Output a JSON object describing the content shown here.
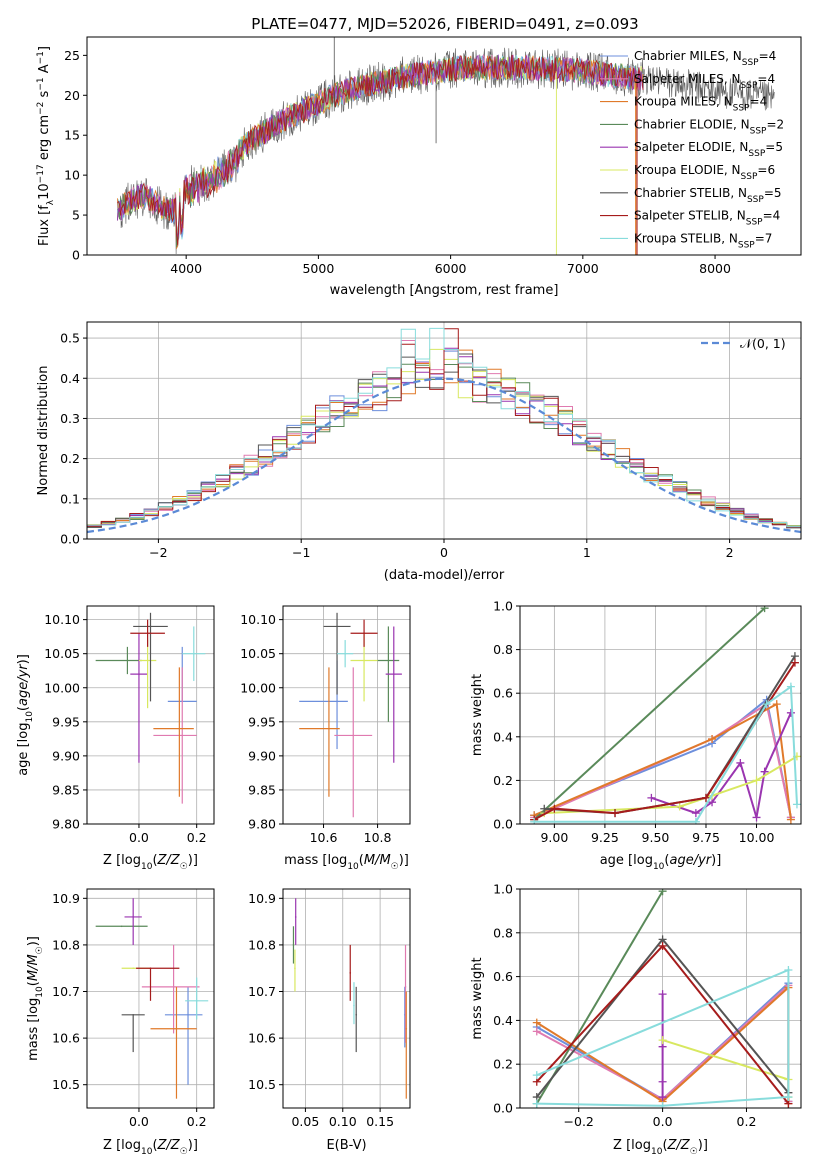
{
  "figure_title": "PLATE=0477, MJD=52026, FIBERID=0491, z=0.093",
  "colors": {
    "Chabrier MILES": "#6d8fdc",
    "Salpeter MILES": "#e07ab0",
    "Kroupa MILES": "#e07a2a",
    "Chabrier ELODIE": "#5a8a5a",
    "Salpeter ELODIE": "#9a35b0",
    "Kroupa ELODIE": "#d8e860",
    "Chabrier STELIB": "#555555",
    "Salpeter STELIB": "#a61c1c",
    "Kroupa STELIB": "#88dcdc",
    "normal": "#5b8ad6",
    "grid": "#b0b0b0"
  },
  "chart_data": [
    {
      "id": "spectrum",
      "type": "line",
      "title": "PLATE=0477, MJD=52026, FIBERID=0491, z=0.093",
      "xlabel": "wavelength [Angstrom, rest frame]",
      "ylabel": "Flux [f_λ10^-17 erg cm^-2 s^-1 A^-1]",
      "xlim": [
        3250,
        8650
      ],
      "ylim": [
        0,
        27.3
      ],
      "xticks": [
        4000,
        5000,
        6000,
        7000,
        8000
      ],
      "yticks": [
        0,
        5,
        10,
        15,
        20,
        25
      ],
      "grid": false,
      "legend_position": "top-right",
      "legend": [
        "Chabrier MILES, N_SSP=4",
        "Salpeter MILES, N_SSP=4",
        "Kroupa MILES, N_SSP=4",
        "Chabrier ELODIE, N_SSP=2",
        "Salpeter ELODIE, N_SSP=5",
        "Kroupa ELODIE, N_SSP=6",
        "Chabrier STELIB, N_SSP=5",
        "Salpeter STELIB, N_SSP=4",
        "Kroupa STELIB, N_SSP=7"
      ],
      "continuum": {
        "x": [
          3480,
          3600,
          3700,
          3800,
          3900,
          4000,
          4100,
          4200,
          4300,
          4400,
          4500,
          4600,
          4700,
          4800,
          4900,
          5000,
          5100,
          5200,
          5300,
          5400,
          5500,
          5600,
          5700,
          5800,
          5900,
          6000,
          6200,
          6400,
          6600,
          6800,
          7000,
          7200,
          7400,
          7600,
          7800,
          8000,
          8200,
          8450
        ],
        "y": [
          5.5,
          7.0,
          7.5,
          6.0,
          5.5,
          8.5,
          9.5,
          10.5,
          11.5,
          13.0,
          14.5,
          15.5,
          16.5,
          17.5,
          18.2,
          19.0,
          19.8,
          20.5,
          21.0,
          21.4,
          21.8,
          22.2,
          22.5,
          22.8,
          23.0,
          23.3,
          23.4,
          23.5,
          23.4,
          23.3,
          23.0,
          22.6,
          22.2,
          21.7,
          21.2,
          20.6,
          20.1,
          19.5
        ]
      }
    },
    {
      "id": "residuals",
      "type": "histogram",
      "xlabel": "(data-model)/error",
      "ylabel": "Normed distribution",
      "xlim": [
        -2.5,
        2.5
      ],
      "ylim": [
        0,
        0.54
      ],
      "xticks": [
        -2,
        -1,
        0,
        1,
        2
      ],
      "yticks": [
        0.0,
        0.1,
        0.2,
        0.3,
        0.4,
        0.5
      ],
      "grid": true,
      "legend_position": "top-right",
      "legend": [
        "N(0,1)"
      ],
      "bin_width": 0.1
    },
    {
      "id": "age_vs_Z",
      "type": "scatter",
      "xlabel": "Z [log10(Z/Z☉)]",
      "ylabel": "age [log10(age/yr)]",
      "xlim": [
        -0.18,
        0.26
      ],
      "ylim": [
        9.8,
        10.12
      ],
      "xticks": [
        0.0,
        0.2
      ],
      "yticks": [
        9.8,
        9.85,
        9.9,
        9.95,
        10.0,
        10.05,
        10.1
      ],
      "grid": true,
      "points": [
        {
          "model": "Chabrier MILES",
          "x": 0.15,
          "xerr": [
            0.05,
            0.05
          ],
          "y": 9.98,
          "yerr": [
            0.0,
            0.08
          ]
        },
        {
          "model": "Salpeter MILES",
          "x": 0.15,
          "xerr": [
            0.1,
            0.05
          ],
          "y": 9.93,
          "yerr": [
            0.1,
            0.1
          ]
        },
        {
          "model": "Kroupa MILES",
          "x": 0.14,
          "xerr": [
            0.09,
            0.05
          ],
          "y": 9.94,
          "yerr": [
            0.1,
            0.09
          ]
        },
        {
          "model": "Chabrier ELODIE",
          "x": -0.04,
          "xerr": [
            0.11,
            0.05
          ],
          "y": 10.04,
          "yerr": [
            0.02,
            0.02
          ]
        },
        {
          "model": "Salpeter ELODIE",
          "x": 0.0,
          "xerr": [
            0.03,
            0.03
          ],
          "y": 10.02,
          "yerr": [
            0.13,
            0.06
          ]
        },
        {
          "model": "Kroupa ELODIE",
          "x": 0.03,
          "xerr": [
            0.03,
            0.03
          ],
          "y": 10.04,
          "yerr": [
            0.07,
            0.03
          ]
        },
        {
          "model": "Chabrier STELIB",
          "x": 0.04,
          "xerr": [
            0.06,
            0.06
          ],
          "y": 10.09,
          "yerr": [
            0.11,
            0.02
          ]
        },
        {
          "model": "Salpeter STELIB",
          "x": 0.03,
          "xerr": [
            0.06,
            0.06
          ],
          "y": 10.08,
          "yerr": [
            0.02,
            0.02
          ]
        },
        {
          "model": "Kroupa STELIB",
          "x": 0.19,
          "xerr": [
            0.04,
            0.04
          ],
          "y": 10.05,
          "yerr": [
            0.04,
            0.04
          ]
        }
      ]
    },
    {
      "id": "age_vs_mass",
      "type": "scatter",
      "xlabel": "mass [log10(M/M☉)]",
      "ylabel": "",
      "xlim": [
        10.45,
        10.92
      ],
      "ylim": [
        9.8,
        10.12
      ],
      "xticks": [
        10.6,
        10.8
      ],
      "yticks": [
        9.8,
        9.85,
        9.9,
        9.95,
        10.0,
        10.05,
        10.1
      ],
      "grid": true,
      "points": [
        {
          "model": "Chabrier MILES",
          "x": 10.65,
          "xerr": [
            0.14,
            0.04
          ],
          "y": 9.98,
          "yerr": [
            0.07,
            0.06
          ]
        },
        {
          "model": "Salpeter MILES",
          "x": 10.71,
          "xerr": [
            0.07,
            0.07
          ],
          "y": 9.93,
          "yerr": [
            0.12,
            0.1
          ]
        },
        {
          "model": "Kroupa MILES",
          "x": 10.62,
          "xerr": [
            0.11,
            0.04
          ],
          "y": 9.94,
          "yerr": [
            0.1,
            0.09
          ]
        },
        {
          "model": "Chabrier ELODIE",
          "x": 10.84,
          "xerr": [
            0.04,
            0.04
          ],
          "y": 10.04,
          "yerr": [
            0.09,
            0.05
          ]
        },
        {
          "model": "Salpeter ELODIE",
          "x": 10.86,
          "xerr": [
            0.03,
            0.03
          ],
          "y": 10.02,
          "yerr": [
            0.13,
            0.07
          ]
        },
        {
          "model": "Kroupa ELODIE",
          "x": 10.75,
          "xerr": [
            0.05,
            0.05
          ],
          "y": 10.04,
          "yerr": [
            0.06,
            0.04
          ]
        },
        {
          "model": "Chabrier STELIB",
          "x": 10.65,
          "xerr": [
            0.05,
            0.05
          ],
          "y": 10.09,
          "yerr": [
            0.1,
            0.02
          ]
        },
        {
          "model": "Salpeter STELIB",
          "x": 10.75,
          "xerr": [
            0.05,
            0.05
          ],
          "y": 10.08,
          "yerr": [
            0.02,
            0.02
          ]
        },
        {
          "model": "Kroupa STELIB",
          "x": 10.68,
          "xerr": [
            0.03,
            0.03
          ],
          "y": 10.05,
          "yerr": [
            0.02,
            0.02
          ]
        }
      ]
    },
    {
      "id": "weight_vs_age",
      "type": "line",
      "xlabel": "age [log10(age/yr)]",
      "ylabel": "mass weight",
      "xlim": [
        8.83,
        10.22
      ],
      "ylim": [
        0.0,
        1.0
      ],
      "xticks": [
        9.0,
        9.25,
        9.5,
        9.75,
        10.0
      ],
      "yticks": [
        0.0,
        0.2,
        0.4,
        0.6,
        0.8,
        1.0
      ],
      "grid": true,
      "series": [
        {
          "model": "Chabrier MILES",
          "x": [
            8.9,
            9.78,
            10.05,
            10.17
          ],
          "y": [
            0.04,
            0.37,
            0.57,
            0.03
          ]
        },
        {
          "model": "Salpeter MILES",
          "x": [
            8.9,
            9.78,
            10.05,
            10.17
          ],
          "y": [
            0.03,
            0.39,
            0.55,
            0.03
          ]
        },
        {
          "model": "Kroupa MILES",
          "x": [
            8.9,
            9.78,
            10.1,
            10.17
          ],
          "y": [
            0.04,
            0.39,
            0.55,
            0.02
          ]
        },
        {
          "model": "Chabrier ELODIE",
          "x": [
            8.9,
            10.04
          ],
          "y": [
            0.02,
            0.99
          ]
        },
        {
          "model": "Salpeter ELODIE",
          "x": [
            9.48,
            9.7,
            9.78,
            9.92,
            10.0,
            10.04,
            10.17
          ],
          "y": [
            0.12,
            0.05,
            0.1,
            0.28,
            0.03,
            0.24,
            0.51
          ]
        },
        {
          "model": "Kroupa ELODIE",
          "x": [
            8.95,
            9.62,
            9.78,
            10.0,
            10.2
          ],
          "y": [
            0.05,
            0.08,
            0.13,
            0.2,
            0.31
          ]
        },
        {
          "model": "Chabrier STELIB",
          "x": [
            8.95,
            9.3,
            9.75,
            10.19
          ],
          "y": [
            0.07,
            0.05,
            0.12,
            0.77
          ]
        },
        {
          "model": "Salpeter STELIB",
          "x": [
            8.9,
            9.0,
            9.3,
            9.75,
            10.19
          ],
          "y": [
            0.02,
            0.07,
            0.05,
            0.12,
            0.74
          ]
        },
        {
          "model": "Kroupa STELIB",
          "x": [
            8.9,
            9.7,
            10.05,
            10.17,
            10.2
          ],
          "y": [
            0.01,
            0.01,
            0.55,
            0.63,
            0.09
          ]
        }
      ]
    },
    {
      "id": "mass_vs_Z",
      "type": "scatter",
      "xlabel": "Z [log10(Z/Z☉)]",
      "ylabel": "mass [log10(M/M☉)]",
      "xlim": [
        -0.18,
        0.26
      ],
      "ylim": [
        10.45,
        10.92
      ],
      "xticks": [
        0.0,
        0.2
      ],
      "yticks": [
        10.5,
        10.6,
        10.7,
        10.8,
        10.9
      ],
      "grid": true,
      "points": [
        {
          "model": "Chabrier MILES",
          "x": 0.17,
          "xerr": [
            0.08,
            0.05
          ],
          "y": 10.65,
          "yerr": [
            0.15,
            0.06
          ]
        },
        {
          "model": "Salpeter MILES",
          "x": 0.12,
          "xerr": [
            0.11,
            0.09
          ],
          "y": 10.71,
          "yerr": [
            0.1,
            0.09
          ]
        },
        {
          "model": "Kroupa MILES",
          "x": 0.13,
          "xerr": [
            0.09,
            0.07
          ],
          "y": 10.62,
          "yerr": [
            0.15,
            0.09
          ]
        },
        {
          "model": "Chabrier ELODIE",
          "x": -0.06,
          "xerr": [
            0.09,
            0.09
          ],
          "y": 10.84,
          "yerr": [
            0.0,
            0.0
          ]
        },
        {
          "model": "Salpeter ELODIE",
          "x": -0.02,
          "xerr": [
            0.03,
            0.03
          ],
          "y": 10.86,
          "yerr": [
            0.06,
            0.04
          ]
        },
        {
          "model": "Kroupa ELODIE",
          "x": -0.02,
          "xerr": [
            0.04,
            0.06
          ],
          "y": 10.75,
          "yerr": [
            0.0,
            0.0
          ]
        },
        {
          "model": "Chabrier STELIB",
          "x": -0.02,
          "xerr": [
            0.04,
            0.04
          ],
          "y": 10.65,
          "yerr": [
            0.08,
            0.0
          ]
        },
        {
          "model": "Salpeter STELIB",
          "x": 0.04,
          "xerr": [
            0.05,
            0.1
          ],
          "y": 10.75,
          "yerr": [
            0.07,
            0.0
          ]
        },
        {
          "model": "Kroupa STELIB",
          "x": 0.2,
          "xerr": [
            0.04,
            0.04
          ],
          "y": 10.68,
          "yerr": [
            0.04,
            0.05
          ]
        }
      ]
    },
    {
      "id": "mass_vs_ebv",
      "type": "scatter",
      "xlabel": "E(B-V)",
      "ylabel": "",
      "xlim": [
        0.02,
        0.19
      ],
      "ylim": [
        10.45,
        10.92
      ],
      "xticks": [
        0.05,
        0.1,
        0.15
      ],
      "yticks": [
        10.5,
        10.6,
        10.7,
        10.8,
        10.9
      ],
      "grid": true,
      "points": [
        {
          "model": "Chabrier MILES",
          "x": 0.183,
          "xerr": [
            0,
            0
          ],
          "y": 10.65,
          "yerr": [
            0.07,
            0.06
          ]
        },
        {
          "model": "Salpeter MILES",
          "x": 0.184,
          "xerr": [
            0,
            0
          ],
          "y": 10.71,
          "yerr": [
            0.12,
            0.09
          ]
        },
        {
          "model": "Kroupa MILES",
          "x": 0.185,
          "xerr": [
            0,
            0
          ],
          "y": 10.62,
          "yerr": [
            0.15,
            0.08
          ]
        },
        {
          "model": "Chabrier ELODIE",
          "x": 0.034,
          "xerr": [
            0,
            0
          ],
          "y": 10.8,
          "yerr": [
            0.04,
            0.04
          ]
        },
        {
          "model": "Salpeter ELODIE",
          "x": 0.037,
          "xerr": [
            0,
            0
          ],
          "y": 10.86,
          "yerr": [
            0.06,
            0.04
          ]
        },
        {
          "model": "Kroupa ELODIE",
          "x": 0.036,
          "xerr": [
            0,
            0
          ],
          "y": 10.75,
          "yerr": [
            0.05,
            0.04
          ]
        },
        {
          "model": "Chabrier STELIB",
          "x": 0.118,
          "xerr": [
            0,
            0
          ],
          "y": 10.65,
          "yerr": [
            0.08,
            0.06
          ]
        },
        {
          "model": "Salpeter STELIB",
          "x": 0.11,
          "xerr": [
            0,
            0
          ],
          "y": 10.74,
          "yerr": [
            0.06,
            0.06
          ]
        },
        {
          "model": "Kroupa STELIB",
          "x": 0.115,
          "xerr": [
            0,
            0
          ],
          "y": 10.67,
          "yerr": [
            0.04,
            0.05
          ]
        }
      ]
    },
    {
      "id": "weight_vs_Z",
      "type": "line",
      "xlabel": "Z [log10(Z/Z☉)]",
      "ylabel": "mass weight",
      "xlim": [
        -0.34,
        0.33
      ],
      "ylim": [
        0.0,
        1.0
      ],
      "xticks": [
        -0.2,
        0.0,
        0.2
      ],
      "yticks": [
        0.0,
        0.2,
        0.4,
        0.6,
        0.8,
        1.0
      ],
      "grid": true,
      "series": [
        {
          "model": "Chabrier MILES",
          "x": [
            -0.3,
            0.0,
            0.3,
            0.3
          ],
          "y": [
            0.37,
            0.04,
            0.57,
            0.03
          ]
        },
        {
          "model": "Salpeter MILES",
          "x": [
            -0.3,
            0.0,
            0.3,
            0.3
          ],
          "y": [
            0.35,
            0.04,
            0.56,
            0.03
          ]
        },
        {
          "model": "Kroupa MILES",
          "x": [
            -0.3,
            0.0,
            0.3,
            0.3
          ],
          "y": [
            0.39,
            0.03,
            0.55,
            0.02
          ]
        },
        {
          "model": "Chabrier ELODIE",
          "x": [
            -0.3,
            0.0
          ],
          "y": [
            0.02,
            0.99
          ]
        },
        {
          "model": "Salpeter ELODIE",
          "x": [
            0.0,
            0.0,
            0.0,
            0.0
          ],
          "y": [
            0.52,
            0.12,
            0.28,
            0.05
          ]
        },
        {
          "model": "Kroupa ELODIE",
          "x": [
            0.0,
            0.3,
            0.3
          ],
          "y": [
            0.31,
            0.13,
            0.05
          ]
        },
        {
          "model": "Chabrier STELIB",
          "x": [
            -0.3,
            0.0,
            0.3
          ],
          "y": [
            0.05,
            0.77,
            0.07
          ]
        },
        {
          "model": "Salpeter STELIB",
          "x": [
            -0.3,
            0.0,
            0.3
          ],
          "y": [
            0.12,
            0.74,
            0.02
          ]
        },
        {
          "model": "Kroupa STELIB",
          "x": [
            -0.3,
            0.0,
            0.3,
            0.3,
            -0.3
          ],
          "y": [
            0.02,
            0.01,
            0.05,
            0.63,
            0.15
          ]
        }
      ]
    }
  ]
}
